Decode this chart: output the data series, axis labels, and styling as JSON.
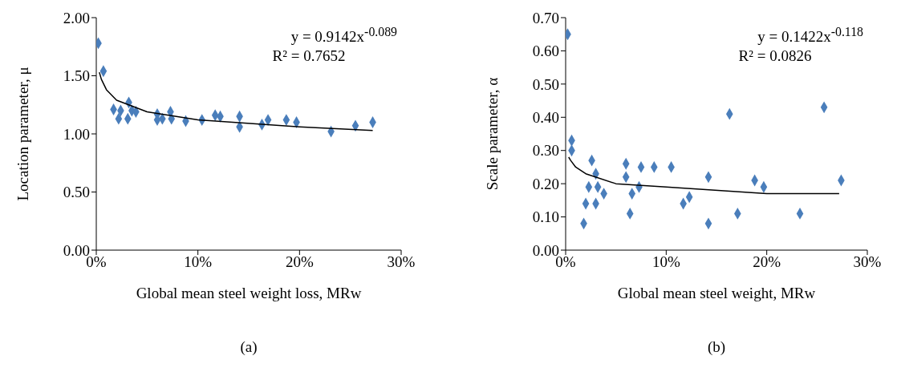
{
  "chart_data": [
    {
      "type": "scatter",
      "xlabel": "Global mean steel weight loss, MRw",
      "ylabel": "Location parameter, μ",
      "xlim": [
        0,
        30
      ],
      "xticks": [
        {
          "value": 0,
          "label": "0%"
        },
        {
          "value": 10,
          "label": "10%"
        },
        {
          "value": 20,
          "label": "20%"
        },
        {
          "value": 30,
          "label": "30%"
        }
      ],
      "ylim": [
        0,
        2
      ],
      "yticks": [
        {
          "value": 0,
          "label": "0.00"
        },
        {
          "value": 0.5,
          "label": "0.50"
        },
        {
          "value": 1,
          "label": "1.00"
        },
        {
          "value": 1.5,
          "label": "1.50"
        },
        {
          "value": 2,
          "label": "2.00"
        }
      ],
      "grid": false,
      "annotations": [
        "y = 0.9142x$^{-0.089}$",
        "R² = 0.7652",
        "(a)"
      ],
      "series": [
        {
          "marker": "diamond",
          "color": "#4a7ebb",
          "x": [
            0.2,
            0.7,
            1.7,
            2.2,
            2.4,
            3.2,
            3.1,
            3.5,
            3.9,
            6.0,
            6.0,
            6.5,
            7.3,
            7.4,
            8.8,
            10.4,
            11.7,
            12.2,
            14.1,
            14.1,
            16.3,
            16.9,
            18.7,
            19.7,
            23.1,
            25.5,
            27.2
          ],
          "values": [
            1.78,
            1.54,
            1.21,
            1.13,
            1.2,
            1.27,
            1.13,
            1.2,
            1.19,
            1.17,
            1.12,
            1.13,
            1.19,
            1.13,
            1.11,
            1.12,
            1.16,
            1.15,
            1.15,
            1.06,
            1.08,
            1.12,
            1.12,
            1.1,
            1.02,
            1.07,
            1.1
          ]
        },
        {
          "type": "line",
          "color": "#000000",
          "x": [
            0.3,
            0.5,
            1,
            2,
            5,
            10,
            20,
            27.2
          ],
          "values": [
            1.53,
            1.47,
            1.38,
            1.29,
            1.19,
            1.12,
            1.06,
            1.03
          ]
        }
      ]
    },
    {
      "type": "scatter",
      "xlabel": "Global mean steel weight, MRw",
      "ylabel": "Scale parameter, α",
      "xlim": [
        0,
        30
      ],
      "xticks": [
        {
          "value": 0,
          "label": "0%"
        },
        {
          "value": 10,
          "label": "10%"
        },
        {
          "value": 20,
          "label": "20%"
        },
        {
          "value": 30,
          "label": "30%"
        }
      ],
      "ylim": [
        0,
        0.7
      ],
      "yticks": [
        {
          "value": 0,
          "label": "0.00"
        },
        {
          "value": 0.1,
          "label": "0.10"
        },
        {
          "value": 0.2,
          "label": "0.20"
        },
        {
          "value": 0.3,
          "label": "0.30"
        },
        {
          "value": 0.4,
          "label": "0.40"
        },
        {
          "value": 0.5,
          "label": "0.50"
        },
        {
          "value": 0.6,
          "label": "0.60"
        },
        {
          "value": 0.7,
          "label": "0.70"
        }
      ],
      "grid": false,
      "annotations": [
        "y = 0.1422x$^{-0.118}$",
        "R² = 0.0826",
        "(b)"
      ],
      "series": [
        {
          "marker": "diamond",
          "color": "#4a7ebb",
          "x": [
            0.2,
            0.6,
            0.6,
            1.8,
            2.0,
            2.3,
            2.6,
            3.0,
            3.0,
            3.2,
            3.8,
            6.0,
            6.0,
            6.4,
            6.6,
            7.5,
            7.3,
            8.8,
            10.5,
            11.7,
            12.3,
            14.2,
            14.2,
            16.3,
            17.1,
            18.8,
            19.7,
            23.3,
            25.7,
            27.4
          ],
          "values": [
            0.65,
            0.33,
            0.3,
            0.08,
            0.14,
            0.19,
            0.27,
            0.23,
            0.14,
            0.19,
            0.17,
            0.26,
            0.22,
            0.11,
            0.17,
            0.25,
            0.19,
            0.25,
            0.25,
            0.14,
            0.16,
            0.22,
            0.08,
            0.41,
            0.11,
            0.21,
            0.19,
            0.11,
            0.43,
            0.21
          ]
        },
        {
          "type": "line",
          "color": "#000000",
          "x": [
            0.3,
            0.5,
            1,
            2,
            5,
            10,
            20,
            27.2
          ],
          "values": [
            0.28,
            0.27,
            0.25,
            0.23,
            0.2,
            0.19,
            0.17,
            0.17
          ]
        }
      ]
    }
  ]
}
